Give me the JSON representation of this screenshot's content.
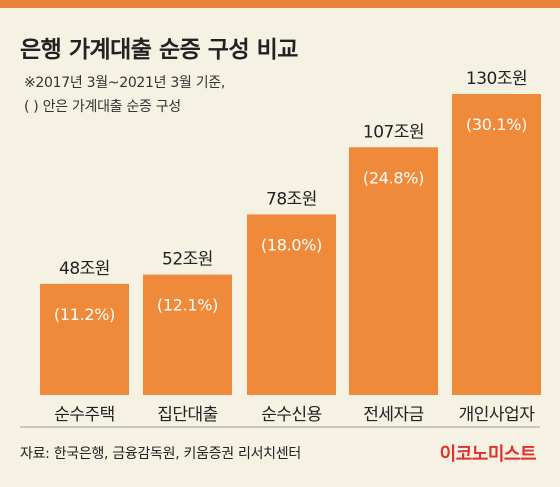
{
  "title": "은행 가계대출 순증 구성 비교",
  "notes": [
    "※2017년 3월~2021년 3월 기준,",
    "( ) 안은 가계대출 순증 구성"
  ],
  "source": "자료: 한국은행, 금융감독원, 키움증권 리서치센터",
  "brand": "이코노미스트",
  "colors": {
    "bar": "#ef8a3a",
    "accent": "#e8833a",
    "background": "#f5f1e3",
    "brand": "#e0302a"
  },
  "chart_data": {
    "type": "bar",
    "title": "은행 가계대출 순증 구성 비교",
    "categories": [
      "순수주택",
      "집단대출",
      "순수신용",
      "전세자금",
      "개인사업자"
    ],
    "values": [
      48,
      52,
      78,
      107,
      130
    ],
    "value_labels": [
      "48조원",
      "52조원",
      "78조원",
      "107조원",
      "130조원"
    ],
    "share_labels": [
      "(11.2%)",
      "(12.1%)",
      "(18.0%)",
      "(24.8%)",
      "(30.1%)"
    ],
    "shares": [
      11.2,
      12.1,
      18.0,
      24.8,
      30.1
    ],
    "unit": "조원",
    "ylim": [
      0,
      130
    ],
    "grid": false,
    "legend": "none"
  }
}
